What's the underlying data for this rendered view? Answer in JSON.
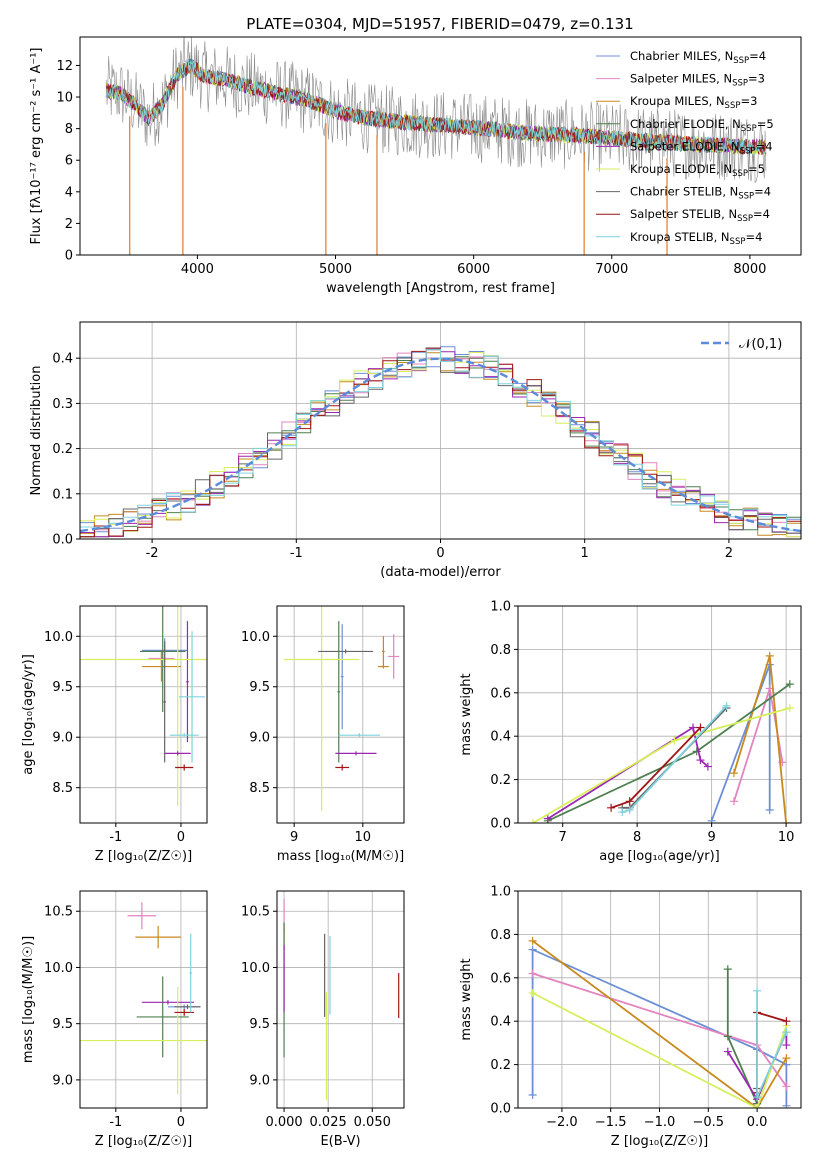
{
  "figure": {
    "title": "PLATE=0304, MJD=51957, FIBERID=0479, z=0.131"
  },
  "colors": {
    "Chabrier MILES": "#6b8fd6",
    "Salpeter MILES": "#e384c0",
    "Kroupa MILES": "#c88a1f",
    "Chabrier ELODIE": "#4f7f4f",
    "Salpeter ELODIE": "#9b27b3",
    "Kroupa ELODIE": "#d8ee5c",
    "Chabrier STELIB": "#666666",
    "Salpeter STELIB": "#a01515",
    "Kroupa STELIB": "#7ed3dc",
    "gaussian": "#5b8bd9",
    "grid": "#b0b0b0",
    "data_spectrum": "#8a8a8a",
    "model_spectrum": "#e07a2a"
  },
  "chart_data": [
    {
      "id": "spectrum",
      "type": "line",
      "title": "PLATE=0304, MJD=51957, FIBERID=0479, z=0.131",
      "xlabel": "wavelength [Angstrom, rest frame]",
      "ylabel": "Flux [fλ10⁻¹⁷ erg cm⁻² s⁻¹ A⁻¹]",
      "xlim": [
        3150,
        8370
      ],
      "ylim": [
        0,
        13.8
      ],
      "xticks": [
        4000,
        5000,
        6000,
        7000,
        8000
      ],
      "yticks": [
        0,
        2,
        4,
        6,
        8,
        10,
        12
      ],
      "grid": false,
      "legend_position": "top-right",
      "legend": [
        {
          "base": "Chabrier MILES, N",
          "sub": "SSP",
          "tail": "=4"
        },
        {
          "base": "Salpeter MILES, N",
          "sub": "SSP",
          "tail": "=3"
        },
        {
          "base": "Kroupa MILES, N",
          "sub": "SSP",
          "tail": "=3"
        },
        {
          "base": "Chabrier ELODIE, N",
          "sub": "SSP",
          "tail": "=5"
        },
        {
          "base": "Salpeter ELODIE, N",
          "sub": "SSP",
          "tail": "=4"
        },
        {
          "base": "Kroupa ELODIE, N",
          "sub": "SSP",
          "tail": "=5"
        },
        {
          "base": "Chabrier STELIB, N",
          "sub": "SSP",
          "tail": "=4"
        },
        {
          "base": "Salpeter STELIB, N",
          "sub": "SSP",
          "tail": "=4"
        },
        {
          "base": "Kroupa STELIB, N",
          "sub": "SSP",
          "tail": "=4"
        }
      ],
      "continuum": {
        "x": [
          3340,
          3450,
          3550,
          3650,
          3750,
          3850,
          3950,
          4050,
          4200,
          4400,
          4600,
          4800,
          5000,
          5200,
          5500,
          5800,
          6100,
          6400,
          6700,
          7000,
          7300,
          7600,
          7900,
          8120
        ],
        "y": [
          10.4,
          10.2,
          9.5,
          8.6,
          9.6,
          11.4,
          12.0,
          11.3,
          11.1,
          10.6,
          10.2,
          9.8,
          9.1,
          8.7,
          8.4,
          8.2,
          8.0,
          7.7,
          7.6,
          7.4,
          7.2,
          7.0,
          6.9,
          6.8
        ]
      },
      "absorption_drops_x": [
        3510,
        3895,
        4930,
        5300,
        6800,
        7400
      ]
    },
    {
      "id": "residuals",
      "type": "histogram",
      "xlabel": "(data-model)/error",
      "ylabel": "Normed distribution",
      "xlim": [
        -2.5,
        2.5
      ],
      "ylim": [
        0,
        0.48
      ],
      "xticks": [
        -2,
        -1,
        0,
        1,
        2
      ],
      "yticks": [
        0.0,
        0.1,
        0.2,
        0.3,
        0.4
      ],
      "grid": true,
      "legend_position": "top-right",
      "legend": [
        "𝒩(0,1)"
      ],
      "bin_width": 0.1
    },
    {
      "id": "age-vs-Z",
      "type": "scatter",
      "xlabel": "Z [log₁₀(Z/Z☉)]",
      "ylabel": "age  [log₁₀(age/yr)]",
      "xlim": [
        -1.55,
        0.4
      ],
      "ylim": [
        8.15,
        10.3
      ],
      "xticks": [
        -1,
        0
      ],
      "yticks": [
        8.5,
        9.0,
        9.5,
        10.0
      ],
      "grid": true,
      "points": [
        {
          "m": "Chabrier MILES",
          "x": -0.25,
          "y": 9.86,
          "xe": 0.35,
          "ye": 0.12
        },
        {
          "m": "Salpeter MILES",
          "x": -0.3,
          "y": 9.78,
          "xe": 0.2,
          "ye": 0.04
        },
        {
          "m": "Kroupa MILES",
          "x": -0.3,
          "y": 9.7,
          "xe": 0.3,
          "ye": 0.15
        },
        {
          "m": "Chabrier ELODIE",
          "x": -0.28,
          "y": 9.85,
          "xe": 0.35,
          "ye": 0.6
        },
        {
          "m": "Salpeter ELODIE",
          "x": 0.1,
          "y": 9.55,
          "xe": 0.02,
          "ye": 0.6
        },
        {
          "m": "Kroupa ELODIE",
          "x": -0.05,
          "y": 9.77,
          "xe": 1.5,
          "ye": 1.45
        },
        {
          "m": "Chabrier STELIB",
          "x": -0.25,
          "y": 9.35,
          "xe": 0.02,
          "ye": 0.6
        },
        {
          "m": "Salpeter STELIB",
          "x": 0.05,
          "y": 8.7,
          "xe": 0.14,
          "ye": 0.03
        },
        {
          "m": "Kroupa STELIB",
          "x": 0.17,
          "y": 9.4,
          "xe": 0.2,
          "ye": 0.65
        },
        {
          "m": "Salpeter ELODIE",
          "x": -0.05,
          "y": 8.84,
          "xe": 0.2,
          "ye": 0.02
        },
        {
          "m": "Kroupa STELIB",
          "x": 0.05,
          "y": 9.02,
          "xe": 0.22,
          "ye": 0.02
        }
      ]
    },
    {
      "id": "age-vs-mass",
      "type": "scatter",
      "xlabel": "mass [log₁₀(M/M☉)]",
      "ylabel": "",
      "xlim": [
        8.75,
        10.6
      ],
      "ylim": [
        8.15,
        10.3
      ],
      "xticks": [
        9,
        10
      ],
      "yticks": [
        8.5,
        9.0,
        9.5,
        10.0
      ],
      "grid": true,
      "points": [
        {
          "m": "Chabrier MILES",
          "x": 9.7,
          "y": 9.6,
          "xe": 0.02,
          "ye": 0.52
        },
        {
          "m": "Salpeter MILES",
          "x": 10.45,
          "y": 9.8,
          "xe": 0.08,
          "ye": 0.22
        },
        {
          "m": "Kroupa MILES",
          "x": 10.3,
          "y": 9.85,
          "xe": 0.02,
          "ye": 0.15
        },
        {
          "m": "Chabrier ELODIE",
          "x": 9.65,
          "y": 9.45,
          "xe": 0.02,
          "ye": 0.7
        },
        {
          "m": "Salpeter ELODIE",
          "x": 9.9,
          "y": 8.84,
          "xe": 0.3,
          "ye": 0.02
        },
        {
          "m": "Kroupa ELODIE",
          "x": 9.4,
          "y": 9.77,
          "xe": 0.55,
          "ye": 1.5
        },
        {
          "m": "Chabrier STELIB",
          "x": 9.75,
          "y": 9.85,
          "xe": 0.4,
          "ye": 0.02
        },
        {
          "m": "Salpeter STELIB",
          "x": 9.7,
          "y": 8.7,
          "xe": 0.1,
          "ye": 0.03
        },
        {
          "m": "Kroupa STELIB",
          "x": 9.95,
          "y": 9.02,
          "xe": 0.3,
          "ye": 0.02
        },
        {
          "m": "Kroupa MILES",
          "x": 10.3,
          "y": 9.7,
          "xe": 0.08,
          "ye": 0.02
        }
      ]
    },
    {
      "id": "mass-weight-vs-age",
      "type": "line",
      "xlabel": "age  [log₁₀(age/yr)]",
      "ylabel": "mass weight",
      "xlim": [
        6.4,
        10.2
      ],
      "ylim": [
        0,
        1
      ],
      "xticks": [
        7,
        8,
        9,
        10
      ],
      "yticks": [
        0.0,
        0.2,
        0.4,
        0.6,
        0.8,
        1.0
      ],
      "grid": true,
      "series": [
        {
          "m": "Chabrier MILES",
          "x": [
            9.0,
            9.78,
            9.78
          ],
          "y": [
            0.01,
            0.73,
            0.06
          ]
        },
        {
          "m": "Salpeter MILES",
          "x": [
            9.3,
            9.78,
            9.95
          ],
          "y": [
            0.1,
            0.62,
            0.28
          ]
        },
        {
          "m": "Kroupa MILES",
          "x": [
            9.3,
            9.78,
            10.0
          ],
          "y": [
            0.23,
            0.77,
            0.0
          ]
        },
        {
          "m": "Chabrier ELODIE",
          "x": [
            6.8,
            8.8,
            10.05
          ],
          "y": [
            0.01,
            0.33,
            0.64
          ]
        },
        {
          "m": "Salpeter ELODIE",
          "x": [
            6.8,
            8.75,
            8.85,
            8.95
          ],
          "y": [
            0.02,
            0.44,
            0.29,
            0.26
          ]
        },
        {
          "m": "Kroupa ELODIE",
          "x": [
            6.6,
            8.5,
            10.05
          ],
          "y": [
            0.0,
            0.38,
            0.53
          ]
        },
        {
          "m": "Chabrier STELIB",
          "x": [
            7.8,
            7.9,
            9.2
          ],
          "y": [
            0.07,
            0.07,
            0.53
          ]
        },
        {
          "m": "Salpeter STELIB",
          "x": [
            7.65,
            7.9,
            8.85
          ],
          "y": [
            0.07,
            0.1,
            0.44
          ]
        },
        {
          "m": "Kroupa STELIB",
          "x": [
            7.8,
            7.9,
            9.2
          ],
          "y": [
            0.05,
            0.06,
            0.54
          ]
        }
      ]
    },
    {
      "id": "mass-vs-Z",
      "type": "scatter",
      "xlabel": "Z [log₁₀(Z/Z☉)]",
      "ylabel": "mass [log₁₀(M/M☉)]",
      "xlim": [
        -1.55,
        0.4
      ],
      "ylim": [
        8.75,
        10.68
      ],
      "xticks": [
        -1,
        0
      ],
      "yticks": [
        9.0,
        9.5,
        10.0,
        10.5
      ],
      "grid": true,
      "points": [
        {
          "m": "Chabrier MILES",
          "x": 0.05,
          "y": 9.65,
          "xe": 0.25,
          "ye": 0.02
        },
        {
          "m": "Salpeter MILES",
          "x": -0.6,
          "y": 10.46,
          "xe": 0.22,
          "ye": 0.12
        },
        {
          "m": "Kroupa MILES",
          "x": -0.35,
          "y": 10.27,
          "xe": 0.35,
          "ye": 0.1
        },
        {
          "m": "Chabrier ELODIE",
          "x": -0.28,
          "y": 9.56,
          "xe": 0.4,
          "ye": 0.36
        },
        {
          "m": "Salpeter ELODIE",
          "x": -0.2,
          "y": 9.69,
          "xe": 0.4,
          "ye": 0.02
        },
        {
          "m": "Kroupa ELODIE",
          "x": -0.05,
          "y": 9.35,
          "xe": 1.5,
          "ye": 0.48
        },
        {
          "m": "Chabrier STELIB",
          "x": 0.1,
          "y": 9.65,
          "xe": 0.2,
          "ye": 0.02
        },
        {
          "m": "Salpeter STELIB",
          "x": 0.05,
          "y": 9.6,
          "xe": 0.15,
          "ye": 0.03
        },
        {
          "m": "Kroupa STELIB",
          "x": 0.15,
          "y": 9.95,
          "xe": 0.02,
          "ye": 0.35
        }
      ]
    },
    {
      "id": "mass-vs-EBV",
      "type": "scatter",
      "xlabel": "E(B-V)",
      "ylabel": "",
      "xlim": [
        -0.004,
        0.068
      ],
      "ylim": [
        8.75,
        10.68
      ],
      "xticks": [
        0.0,
        0.025,
        0.05
      ],
      "xticklabels": [
        "0.000",
        "0.025",
        "0.050"
      ],
      "yticks": [
        9.0,
        9.5,
        10.0,
        10.5
      ],
      "grid": true,
      "points": [
        {
          "m": "Salpeter MILES",
          "x": 0.0,
          "y": 10.46,
          "xe": 0.0,
          "ye": 0.15
        },
        {
          "m": "Kroupa MILES",
          "x": 0.0,
          "y": 10.27,
          "xe": 0.0,
          "ye": 0.12
        },
        {
          "m": "Chabrier ELODIE",
          "x": 0.0,
          "y": 9.8,
          "xe": 0.0,
          "ye": 0.6
        },
        {
          "m": "Salpeter ELODIE",
          "x": 0.0,
          "y": 9.9,
          "xe": 0.0,
          "ye": 0.3
        },
        {
          "m": "Chabrier STELIB",
          "x": 0.023,
          "y": 9.93,
          "xe": 0.0,
          "ye": 0.37
        },
        {
          "m": "Kroupa ELODIE",
          "x": 0.024,
          "y": 9.3,
          "xe": 0.0,
          "ye": 0.48
        },
        {
          "m": "Kroupa STELIB",
          "x": 0.026,
          "y": 9.93,
          "xe": 0.0,
          "ye": 0.35
        },
        {
          "m": "Salpeter STELIB",
          "x": 0.065,
          "y": 9.75,
          "xe": 0.0,
          "ye": 0.2
        }
      ]
    },
    {
      "id": "mass-weight-vs-Z",
      "type": "line",
      "xlabel": "Z [log₁₀(Z/Z☉)]",
      "ylabel": "mass weight",
      "xlim": [
        -2.45,
        0.45
      ],
      "ylim": [
        0,
        1
      ],
      "xticks": [
        -2.0,
        -1.5,
        -1.0,
        -0.5,
        0.0
      ],
      "xticklabels": [
        "−2.0",
        "−1.5",
        "−1.0",
        "−0.5",
        "0.0"
      ],
      "yticks": [
        0.0,
        0.2,
        0.4,
        0.6,
        0.8,
        1.0
      ],
      "grid": true,
      "series": [
        {
          "m": "Chabrier MILES",
          "x": [
            -2.3,
            -2.3,
            0.0,
            0.3,
            0.3
          ],
          "y": [
            0.06,
            0.73,
            0.27,
            0.2,
            0.01
          ]
        },
        {
          "m": "Salpeter MILES",
          "x": [
            -2.3,
            0.0,
            0.3
          ],
          "y": [
            0.62,
            0.29,
            0.1
          ]
        },
        {
          "m": "Kroupa MILES",
          "x": [
            -2.3,
            0.0,
            0.3
          ],
          "y": [
            0.77,
            0.0,
            0.23
          ]
        },
        {
          "m": "Chabrier ELODIE",
          "x": [
            -0.3,
            -0.3,
            0.0,
            0.0
          ],
          "y": [
            0.64,
            0.33,
            0.02,
            0.02
          ]
        },
        {
          "m": "Salpeter ELODIE",
          "x": [
            -0.3,
            0.0,
            0.3,
            0.3
          ],
          "y": [
            0.26,
            0.04,
            0.35,
            0.29
          ]
        },
        {
          "m": "Kroupa ELODIE",
          "x": [
            -2.3,
            0.0,
            0.3
          ],
          "y": [
            0.53,
            0.0,
            0.38
          ]
        },
        {
          "m": "Chabrier STELIB",
          "x": [
            0.0,
            0.0,
            0.0
          ],
          "y": [
            0.07,
            0.09,
            0.05
          ]
        },
        {
          "m": "Salpeter STELIB",
          "x": [
            0.0,
            0.0,
            0.3
          ],
          "y": [
            0.07,
            0.44,
            0.4
          ]
        },
        {
          "m": "Kroupa STELIB",
          "x": [
            0.0,
            0.0,
            0.3
          ],
          "y": [
            0.54,
            0.05,
            0.35
          ]
        }
      ]
    }
  ]
}
